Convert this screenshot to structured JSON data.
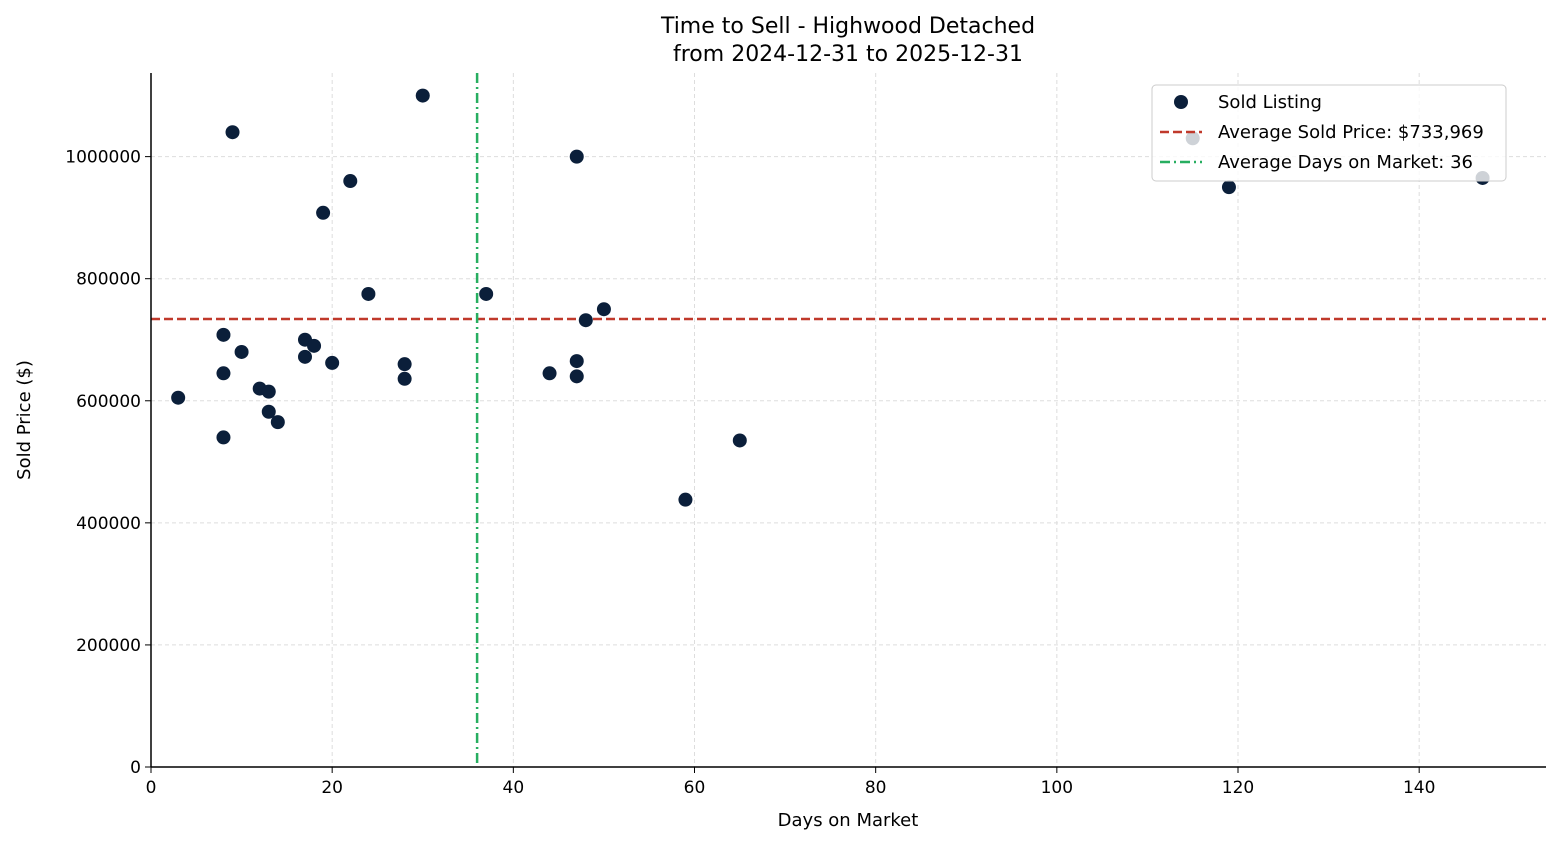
{
  "chart_data": {
    "type": "scatter",
    "title": "Time to Sell - Highwood Detached",
    "subtitle": "from 2024-12-31 to 2025-12-31",
    "xlabel": "Days on Market",
    "ylabel": "Sold Price ($)",
    "xlim": [
      0,
      154
    ],
    "ylim": [
      0,
      1137000
    ],
    "xticks": [
      0,
      20,
      40,
      60,
      80,
      100,
      120,
      140
    ],
    "yticks": [
      0,
      200000,
      400000,
      600000,
      800000,
      1000000
    ],
    "grid": true,
    "legend_placement": "top-right",
    "colors": {
      "points": "#0b1f3a",
      "avg_price": "#c0392b",
      "avg_days": "#27ae60"
    },
    "series": [
      {
        "name": "Sold Listing",
        "points": [
          [
            3,
            605000
          ],
          [
            9,
            1040000
          ],
          [
            8,
            708000
          ],
          [
            8,
            645000
          ],
          [
            8,
            540000
          ],
          [
            10,
            680000
          ],
          [
            12,
            620000
          ],
          [
            13,
            615000
          ],
          [
            13,
            582000
          ],
          [
            14,
            565000
          ],
          [
            17,
            700000
          ],
          [
            17,
            672000
          ],
          [
            18,
            690000
          ],
          [
            19,
            908000
          ],
          [
            20,
            662000
          ],
          [
            22,
            960000
          ],
          [
            24,
            775000
          ],
          [
            28,
            660000
          ],
          [
            28,
            636000
          ],
          [
            30,
            1100000
          ],
          [
            37,
            775000
          ],
          [
            44,
            645000
          ],
          [
            47,
            1000000
          ],
          [
            47,
            665000
          ],
          [
            47,
            640000
          ],
          [
            48,
            732000
          ],
          [
            50,
            750000
          ],
          [
            59,
            438000
          ],
          [
            65,
            535000
          ],
          [
            115,
            1030000
          ],
          [
            119,
            950000
          ],
          [
            147,
            965000
          ]
        ]
      }
    ],
    "avg_price": {
      "label": "Average Sold Price: $733,969",
      "value": 733969
    },
    "avg_days": {
      "label": "Average Days on Market: 36",
      "value": 36
    }
  }
}
